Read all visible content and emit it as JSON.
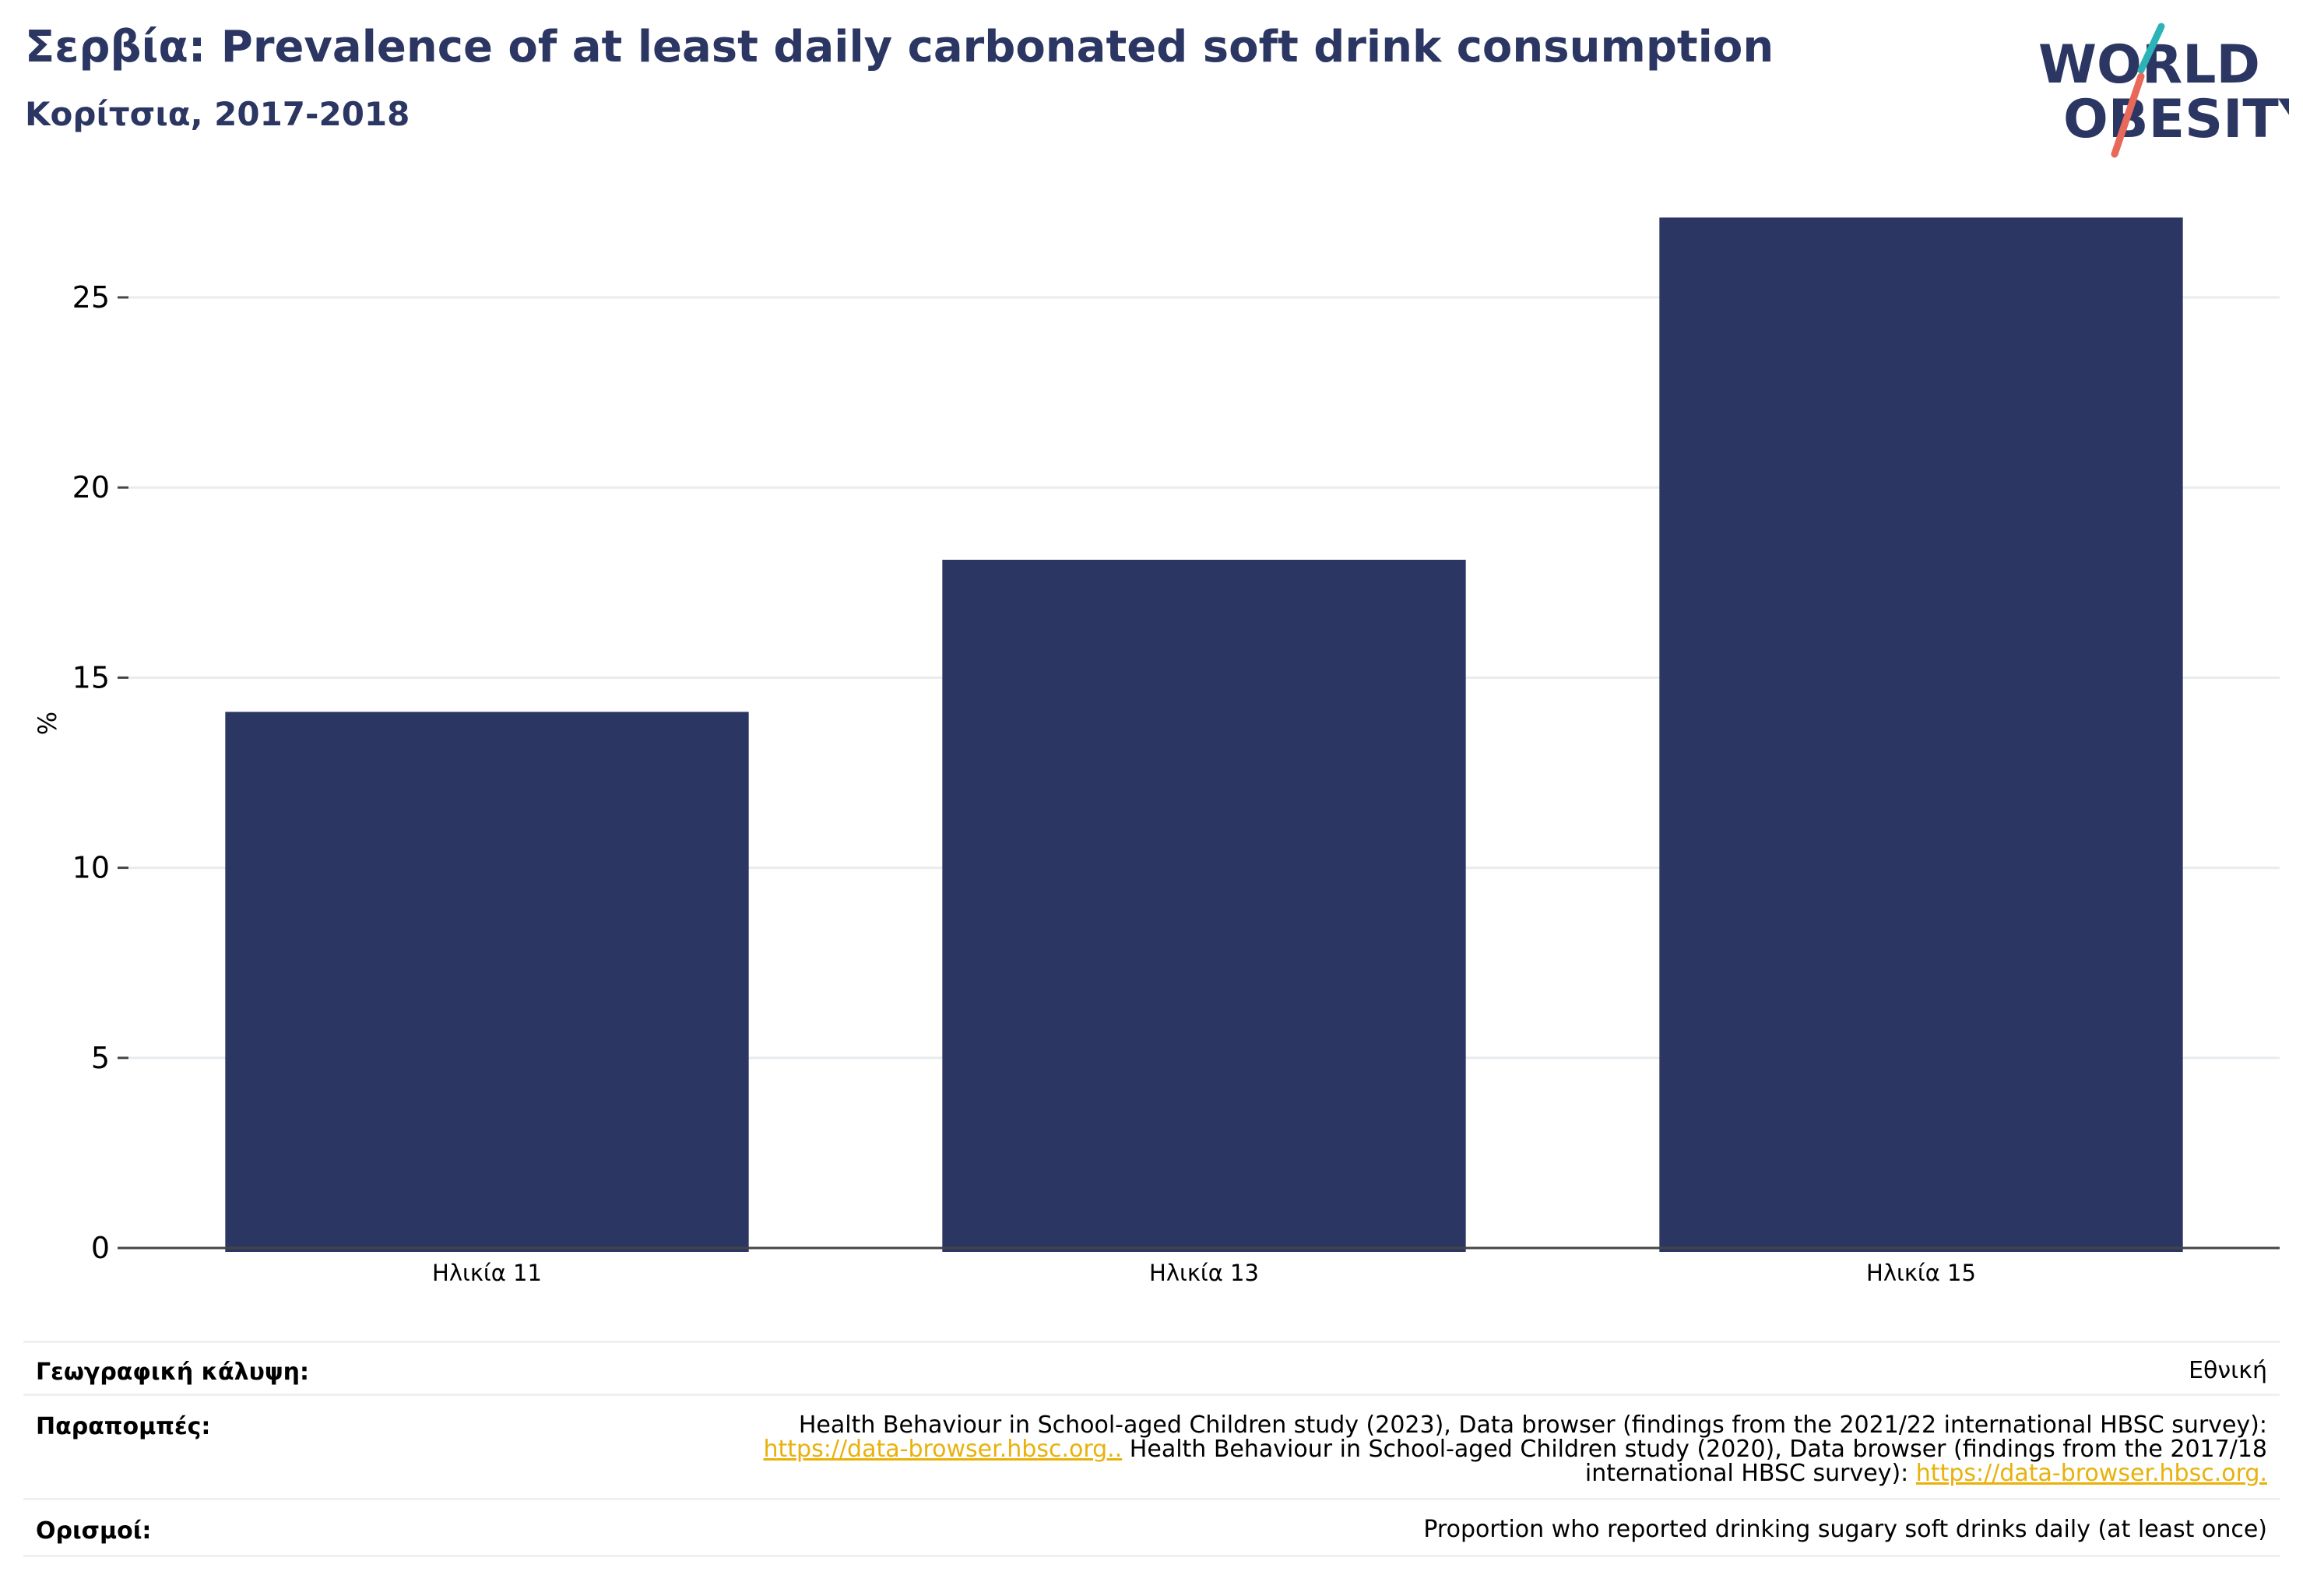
{
  "header": {
    "title": "Σερβία: Prevalence of at least daily carbonated soft drink consumption",
    "subtitle": "Κορίτσια, 2017-2018"
  },
  "logo": {
    "line1": "WORLD",
    "line2": "OBESITY",
    "icon": "world-obesity-slash-logo",
    "text_color": "#2b3663",
    "slash_colors": [
      "#2bb3b8",
      "#e8685a"
    ]
  },
  "chart_data": {
    "type": "bar",
    "categories": [
      "Ηλικία 11",
      "Ηλικία 13",
      "Ηλικία 15"
    ],
    "values": [
      14.1,
      18.1,
      27.1
    ],
    "ylabel": "%",
    "xlabel": "",
    "ylim": [
      0,
      27.6
    ],
    "yticks": [
      0,
      5,
      10,
      15,
      20,
      25
    ],
    "grid": true,
    "bar_color": "#2b3663"
  },
  "footer": {
    "coverage_label": "Γεωγραφική κάλυψη:",
    "coverage_value": "Εθνική",
    "references_label": "Παραπομπές:",
    "ref_text_1": "Health Behaviour in School-aged Children study (2023), Data browser (findings from the 2021/22 international HBSC survey): ",
    "ref_link_1": "https://data-browser.hbsc.org..",
    "ref_text_2": " Health Behaviour in School-aged Children study (2020), Data browser (findings from the 2017/18 international HBSC survey): ",
    "ref_link_2": "https://data-browser.hbsc.org.",
    "definitions_label": "Ορισμοί:",
    "definitions_value": "Proportion who reported drinking sugary soft drinks daily (at least once)"
  }
}
